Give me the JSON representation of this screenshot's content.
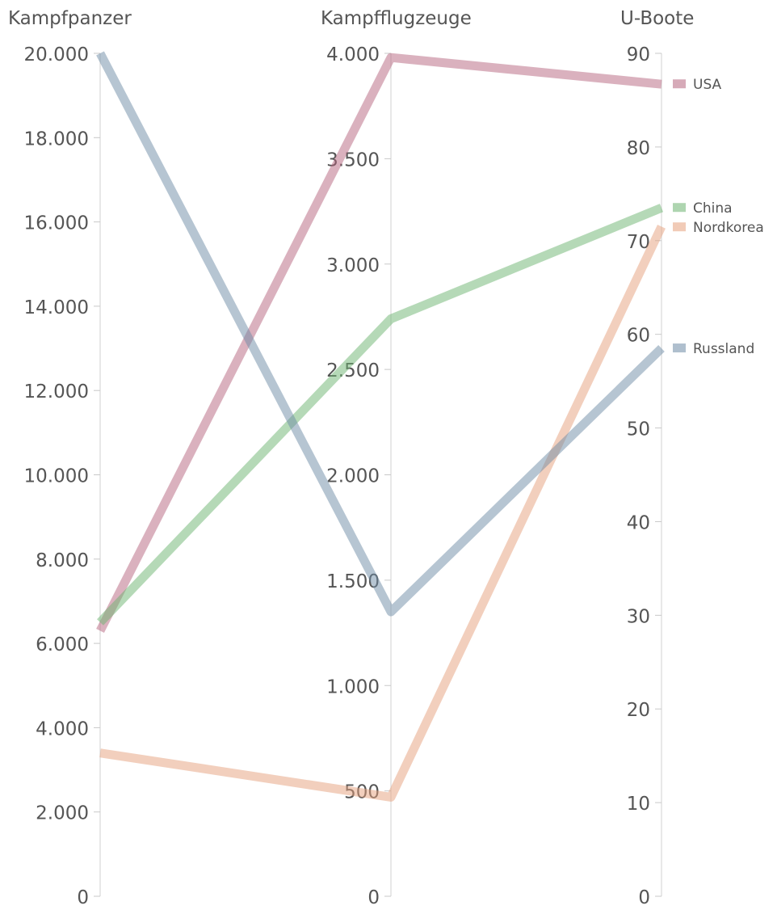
{
  "chart_data": {
    "type": "line",
    "subtype": "parallel-coordinates",
    "dimensions": [
      {
        "title": "Kampfpanzer",
        "range": [
          0,
          20000
        ],
        "ticks": [
          0,
          2000,
          4000,
          6000,
          8000,
          10000,
          12000,
          14000,
          16000,
          18000,
          20000
        ],
        "tick_labels": [
          "0",
          "2.000",
          "4.000",
          "6.000",
          "8.000",
          "10.000",
          "12.000",
          "14.000",
          "16.000",
          "18.000",
          "20.000"
        ],
        "tick_side": "left"
      },
      {
        "title": "Kampfflugzeuge",
        "range": [
          0,
          4000
        ],
        "ticks": [
          0,
          500,
          1000,
          1500,
          2000,
          2500,
          3000,
          3500,
          4000
        ],
        "tick_labels": [
          "0",
          "500",
          "1.000",
          "1.500",
          "2.000",
          "2.500",
          "3.000",
          "3.500",
          "4.000"
        ],
        "tick_side": "left"
      },
      {
        "title": "U-Boote",
        "range": [
          0,
          90
        ],
        "ticks": [
          0,
          10,
          20,
          30,
          40,
          50,
          60,
          70,
          80,
          90
        ],
        "tick_labels": [
          "0",
          "10",
          "20",
          "30",
          "40",
          "50",
          "60",
          "70",
          "80",
          "90"
        ],
        "tick_side": "left"
      }
    ],
    "series": [
      {
        "name": "USA",
        "color": "#b5647e",
        "values": [
          6300,
          3980,
          86.7
        ]
      },
      {
        "name": "China",
        "color": "#6bb36f",
        "values": [
          6500,
          2740,
          73.5
        ]
      },
      {
        "name": "Nordkorea",
        "color": "#e6a07c",
        "values": [
          3400,
          470,
          71.5
        ]
      },
      {
        "name": "Russland",
        "color": "#6d8ba5",
        "values": [
          20000,
          1350,
          58.5
        ]
      }
    ],
    "legend_placement": "right",
    "grid": false
  }
}
